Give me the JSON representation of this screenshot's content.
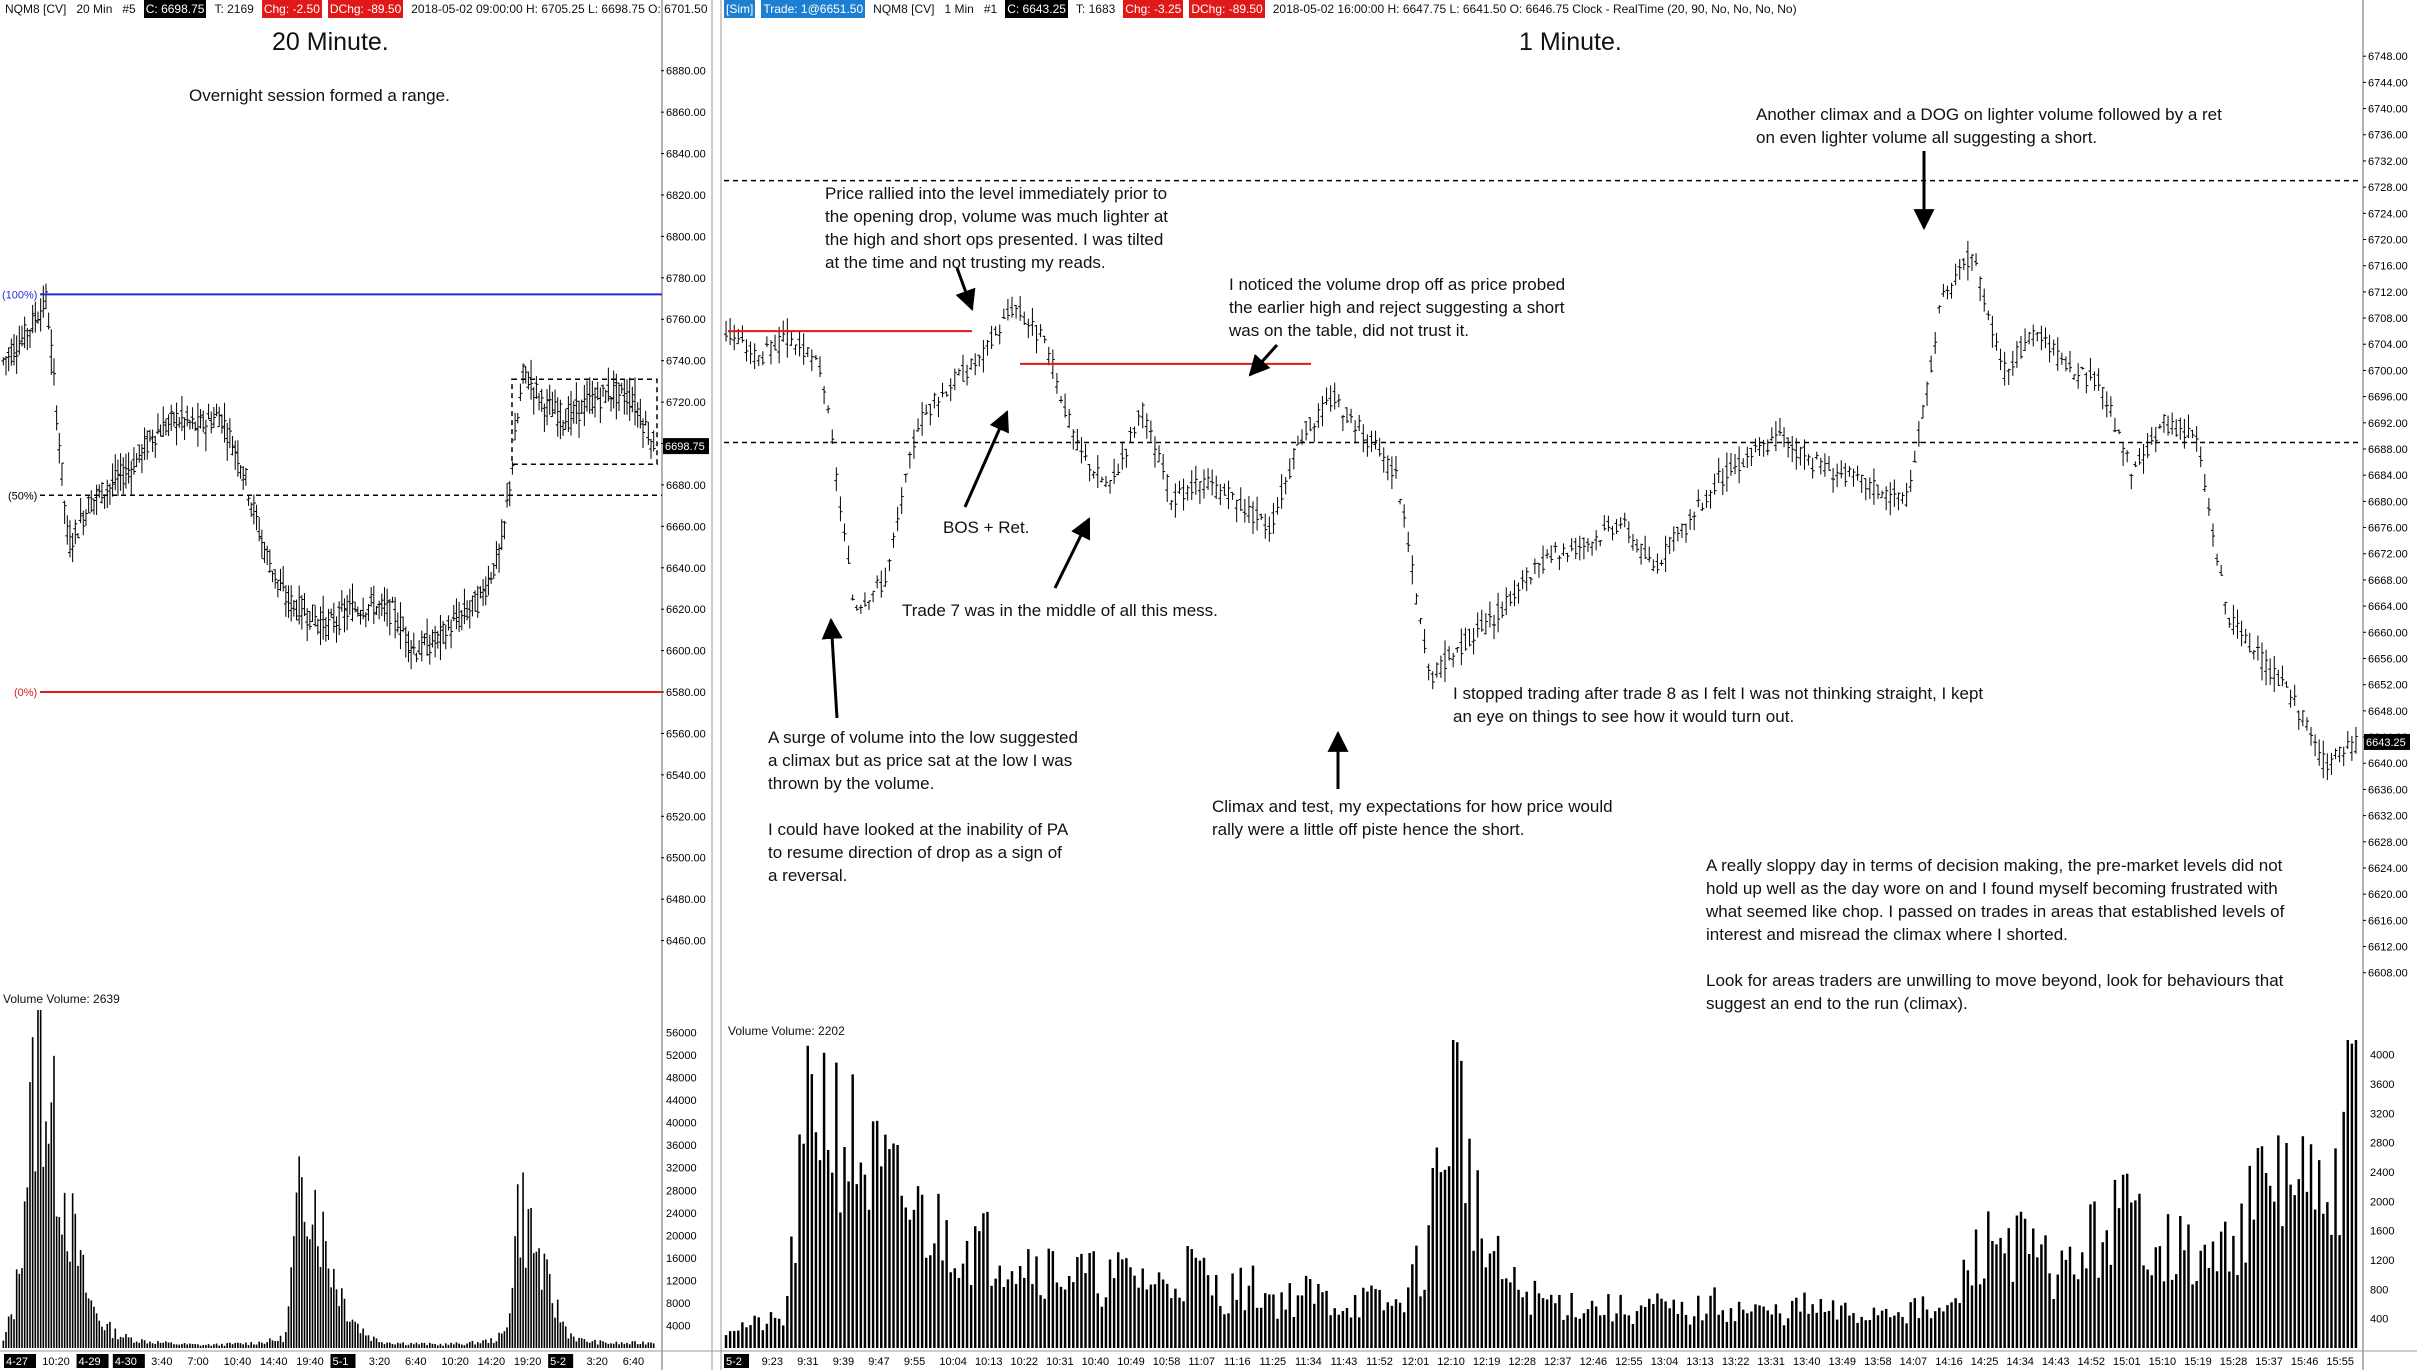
{
  "left_panel": {
    "header": {
      "symbol": "NQM8 [CV]",
      "interval": "20 Min",
      "id": "#5",
      "close": "C: 6698.75",
      "ticks": "T: 2169",
      "chg": "Chg: -2.50",
      "dchg": "DChg: -89.50",
      "bar_info": "2018-05-02 09:00:00 H: 6705.25 L: 6698.75 O: 6701.50"
    },
    "title": "20 Minute.",
    "note": "Overnight session formed a range.",
    "fib_100": "(100%)",
    "fib_50": "(50%)",
    "fib_0": "(0%)",
    "last_price_tag": "6698.75",
    "volume_label": "Volume  Volume: 2639"
  },
  "right_panel": {
    "header": {
      "sim": "[Sim]",
      "trade": "Trade: 1@6651.50",
      "symbol": "NQM8 [CV]",
      "interval": "1 Min",
      "id": "#1",
      "close": "C: 6643.25",
      "ticks": "T: 1683",
      "chg": "Chg: -3.25",
      "dchg": "DChg: -89.50",
      "bar_info": "2018-05-02 16:00:00 H: 6647.75 L: 6641.50 O: 6646.75 Clock - RealTime  (20, 90, No, No, No, No)"
    },
    "title": "1 Minute.",
    "last_price_tag": "6643.25",
    "volume_label": "Volume  Volume: 2202",
    "annotations": {
      "rally": "Price rallied into the level immediately prior to\nthe opening drop, volume was much lighter at\nthe high and short ops presented.  I was tilted\nat the time and not trusting my reads.",
      "noticed": "I noticed the volume drop off as price probed\nthe earlier high and reject suggesting a short\nwas on the table, did not trust it.",
      "climax2": "Another climax and a DOG on lighter volume followed by a ret\non even lighter volume all suggesting a short.",
      "bos": "BOS + Ret.",
      "trade7": "Trade 7 was in the middle of all this mess.",
      "surge": "A surge of volume into the low suggested\na climax but as price sat at the low I was\nthrown by the volume.\n\nI could have looked at the inability of PA\nto resume direction of drop as a sign of\na reversal.",
      "stopped": "I stopped trading after trade 8 as I felt I was not thinking straight, I kept\nan eye on things to see how it would turn out.",
      "climax_test": "Climax and test, my expectations for how price would\nrally were a little off piste hence the short.",
      "summary": "A really sloppy day in terms of decision making, the pre-market levels did not\nhold up well as the day wore on and I found myself becoming frustrated with\nwhat seemed like chop.  I passed on trades in areas that established levels of\ninterest and misread the climax where I shorted.\n\nLook for areas traders are unwilling to move beyond, look for behaviours that\nsuggest an end to the run (climax)."
    }
  },
  "colors": {
    "fib_blue": "#1f2fd6",
    "level_red": "#e01818",
    "bar": "#000000",
    "tag_bg": "#000000"
  },
  "chart_data": [
    {
      "type": "ohlc",
      "panel": "20 Minute",
      "ylim": [
        6440,
        6890
      ],
      "yticks": [
        6880,
        6860,
        6840,
        6820,
        6800,
        6780,
        6760,
        6740,
        6720,
        6700,
        6680,
        6660,
        6640,
        6620,
        6600,
        6580,
        6560,
        6540,
        6520,
        6500,
        6480,
        6460
      ],
      "xticks": [
        "4-27",
        "10:20",
        "4-29",
        "4-30",
        "3:40",
        "7:00",
        "10:40",
        "14:40",
        "19:40",
        "5-1",
        "3:20",
        "6:40",
        "10:20",
        "14:20",
        "19:20",
        "5-2",
        "3:20",
        "6:40"
      ],
      "close_path": [
        6740,
        6752,
        6770,
        6650,
        6672,
        6680,
        6690,
        6705,
        6712,
        6708,
        6714,
        6690,
        6650,
        6625,
        6618,
        6612,
        6620,
        6622,
        6618,
        6600,
        6605,
        6615,
        6625,
        6650,
        6735,
        6718,
        6712,
        6720,
        6725,
        6722,
        6700
      ],
      "levels": {
        "fib_100": 6772,
        "fib_50": 6675,
        "fib_0": 6580,
        "range_high": 6731,
        "range_low": 6690
      },
      "last": 6698.75
    },
    {
      "type": "ohlc",
      "panel": "1 Minute",
      "ylim": [
        6602,
        6752
      ],
      "yticks": [
        6748,
        6744,
        6740,
        6736,
        6732,
        6728,
        6724,
        6720,
        6716,
        6712,
        6708,
        6704,
        6700,
        6696,
        6692,
        6688,
        6684,
        6680,
        6676,
        6672,
        6668,
        6664,
        6660,
        6656,
        6652,
        6648,
        6644,
        6640,
        6636,
        6632,
        6628,
        6624,
        6620,
        6616,
        6612,
        6608
      ],
      "xticks": [
        "5-2",
        "9:23",
        "9:31",
        "9:39",
        "9:47",
        "9:55",
        "10:04",
        "10:13",
        "10:22",
        "10:31",
        "10:40",
        "10:49",
        "10:58",
        "11:07",
        "11:16",
        "11:25",
        "11:34",
        "11:43",
        "11:52",
        "12:01",
        "12:10",
        "12:19",
        "12:28",
        "12:37",
        "12:46",
        "12:55",
        "13:04",
        "13:13",
        "13:22",
        "13:31",
        "13:40",
        "13:49",
        "13:58",
        "14:07",
        "14:16",
        "14:25",
        "14:34",
        "14:43",
        "14:52",
        "15:01",
        "15:10",
        "15:19",
        "15:28",
        "15:37",
        "15:46",
        "15:55"
      ],
      "close_path": [
        6706,
        6702,
        6705,
        6700,
        6664,
        6668,
        6692,
        6698,
        6702,
        6710,
        6704,
        6688,
        6682,
        6694,
        6680,
        6683,
        6680,
        6676,
        6690,
        6696,
        6690,
        6684,
        6653,
        6658,
        6662,
        6668,
        6672,
        6674,
        6677,
        6670,
        6676,
        6683,
        6687,
        6690,
        6686,
        6684,
        6682,
        6680,
        6710,
        6718,
        6700,
        6706,
        6700,
        6698,
        6684,
        6692,
        6690,
        6662,
        6656,
        6650,
        6640,
        6643
      ],
      "levels": {
        "opening_high": 6706,
        "probe_level": 6701,
        "upper_dashed": 6729,
        "mid_dashed": 6689
      },
      "last": 6643.25
    },
    {
      "type": "bar",
      "panel": "20 Minute Volume",
      "ylim": [
        0,
        60000
      ],
      "yticks": [
        56000,
        52000,
        48000,
        44000,
        40000,
        36000,
        32000,
        28000,
        24000,
        20000,
        16000,
        12000,
        8000,
        4000
      ],
      "profile": [
        1200,
        9000,
        38000,
        58000,
        42000,
        30000,
        18000,
        9000,
        5000,
        3000,
        2000,
        1500,
        1200,
        1000,
        800,
        700,
        600,
        600,
        700,
        800,
        900,
        1100,
        1400,
        2000,
        26000,
        34000,
        22000,
        14000,
        8000,
        4000,
        2000,
        1200,
        1000,
        900,
        800,
        700,
        700,
        800,
        900,
        1200,
        1500,
        3000,
        28000,
        22000,
        14000,
        8000,
        3000,
        1500,
        1200,
        1000,
        900,
        900,
        1000,
        1200
      ]
    },
    {
      "type": "bar",
      "panel": "1 Minute Volume",
      "ylim": [
        0,
        4200
      ],
      "yticks": [
        4000,
        3600,
        3200,
        2800,
        2400,
        2000,
        1600,
        1200,
        800,
        400
      ],
      "profile": [
        300,
        350,
        400,
        3900,
        3200,
        2600,
        2200,
        1800,
        1600,
        1500,
        1400,
        1200,
        1100,
        1000,
        1100,
        900,
        1200,
        800,
        900,
        700,
        800,
        650,
        700,
        600,
        1300,
        4100,
        1500,
        900,
        700,
        650,
        600,
        550,
        600,
        500,
        650,
        550,
        500,
        600,
        520,
        480,
        600,
        550,
        500,
        1400,
        1700,
        1300,
        1100,
        1600,
        2000,
        1700,
        1400,
        1200,
        1800,
        2400,
        2600,
        1800,
        3900
      ]
    }
  ]
}
